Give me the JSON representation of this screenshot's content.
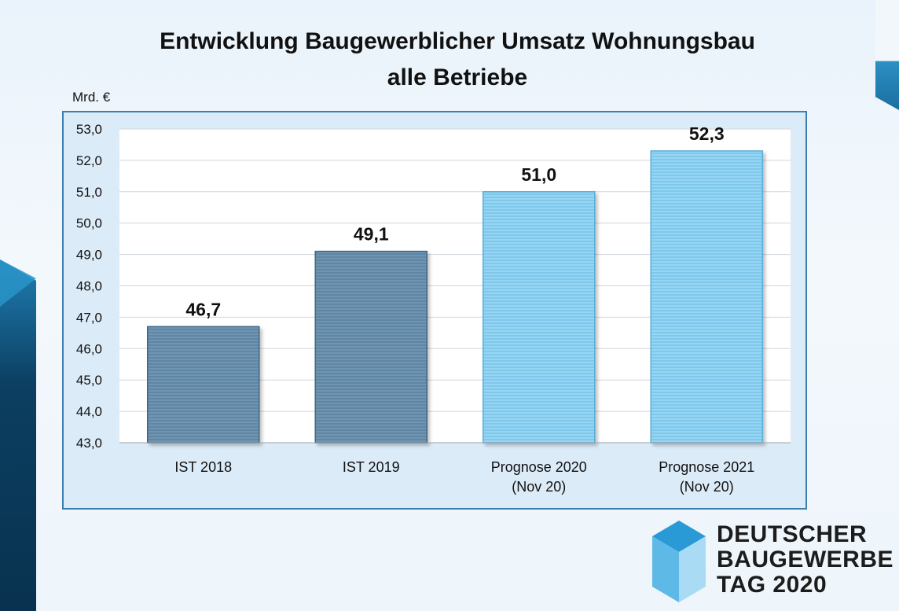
{
  "title_line1": "Entwicklung Baugewerblicher Umsatz Wohnungsbau",
  "title_line2": "alle Betriebe",
  "unit": "Mrd. €",
  "colors": {
    "ist": "#5f86a4",
    "prognose": "#86cdef",
    "grid": "#cfd7de",
    "plot_bg": "#ffffff"
  },
  "chart_data": {
    "type": "bar",
    "categories": [
      [
        "IST 2018"
      ],
      [
        "IST 2019"
      ],
      [
        "Prognose 2020",
        "(Nov 20)"
      ],
      [
        "Prognose 2021",
        "(Nov 20)"
      ]
    ],
    "values": [
      46.7,
      49.1,
      51.0,
      52.3
    ],
    "data_labels": [
      "46,7",
      "49,1",
      "51,0",
      "52,3"
    ],
    "bar_kind": [
      "ist",
      "ist",
      "prognose",
      "prognose"
    ],
    "ylim": [
      43,
      53
    ],
    "yticks": [
      "43,0",
      "44,0",
      "45,0",
      "46,0",
      "47,0",
      "48,0",
      "49,0",
      "50,0",
      "51,0",
      "52,0",
      "53,0"
    ],
    "grid": true,
    "legend": "none"
  },
  "logo": {
    "line1": "DEUTSCHER",
    "line2": "BAUGEWERBE",
    "line3": "TAG 2020"
  }
}
